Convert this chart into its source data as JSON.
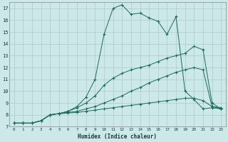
{
  "title": "",
  "xlabel": "Humidex (Indice chaleur)",
  "bg_color": "#cce8e8",
  "grid_color": "#aacccc",
  "line_color": "#1a6b5a",
  "xlim": [
    -0.5,
    23.5
  ],
  "ylim": [
    7,
    17.5
  ],
  "xticks": [
    0,
    1,
    2,
    3,
    4,
    5,
    6,
    7,
    8,
    9,
    10,
    11,
    12,
    13,
    14,
    15,
    16,
    17,
    18,
    19,
    20,
    21,
    22,
    23
  ],
  "yticks": [
    7,
    8,
    9,
    10,
    11,
    12,
    13,
    14,
    15,
    16,
    17
  ],
  "line1_x": [
    0,
    1,
    2,
    3,
    4,
    5,
    6,
    7,
    8,
    9,
    10,
    11,
    12,
    13,
    14,
    15,
    16,
    17,
    18,
    19,
    20,
    21,
    22,
    23
  ],
  "line1_y": [
    7.3,
    7.3,
    7.3,
    7.5,
    8.0,
    8.1,
    8.15,
    8.2,
    8.3,
    8.4,
    8.5,
    8.6,
    8.7,
    8.8,
    8.9,
    9.0,
    9.1,
    9.2,
    9.3,
    9.4,
    9.4,
    9.2,
    8.7,
    8.6
  ],
  "line2_x": [
    0,
    1,
    2,
    3,
    4,
    5,
    6,
    7,
    8,
    9,
    10,
    11,
    12,
    13,
    14,
    15,
    16,
    17,
    18,
    19,
    20,
    21,
    22,
    23
  ],
  "line2_y": [
    7.3,
    7.3,
    7.3,
    7.5,
    8.0,
    8.1,
    8.2,
    8.3,
    8.5,
    8.7,
    9.0,
    9.3,
    9.6,
    10.0,
    10.3,
    10.7,
    11.0,
    11.3,
    11.6,
    11.8,
    12.0,
    11.8,
    8.7,
    8.5
  ],
  "line3_x": [
    0,
    1,
    2,
    3,
    4,
    5,
    6,
    7,
    8,
    9,
    10,
    11,
    12,
    13,
    14,
    15,
    16,
    17,
    18,
    19,
    20,
    21,
    22,
    23
  ],
  "line3_y": [
    7.3,
    7.3,
    7.3,
    7.5,
    8.0,
    8.1,
    8.3,
    8.6,
    9.0,
    9.6,
    10.5,
    11.1,
    11.5,
    11.8,
    12.0,
    12.2,
    12.5,
    12.8,
    13.0,
    13.2,
    13.8,
    13.5,
    9.0,
    8.5
  ],
  "line4_x": [
    0,
    1,
    2,
    3,
    4,
    5,
    6,
    7,
    8,
    9,
    10,
    11,
    12,
    13,
    14,
    15,
    16,
    17,
    18,
    19,
    20,
    21,
    22,
    23
  ],
  "line4_y": [
    7.3,
    7.3,
    7.3,
    7.5,
    8.0,
    8.1,
    8.3,
    8.7,
    9.5,
    11.0,
    14.8,
    17.0,
    17.3,
    16.5,
    16.6,
    16.2,
    15.9,
    14.8,
    16.3,
    10.0,
    9.3,
    8.5,
    8.6,
    8.5
  ]
}
